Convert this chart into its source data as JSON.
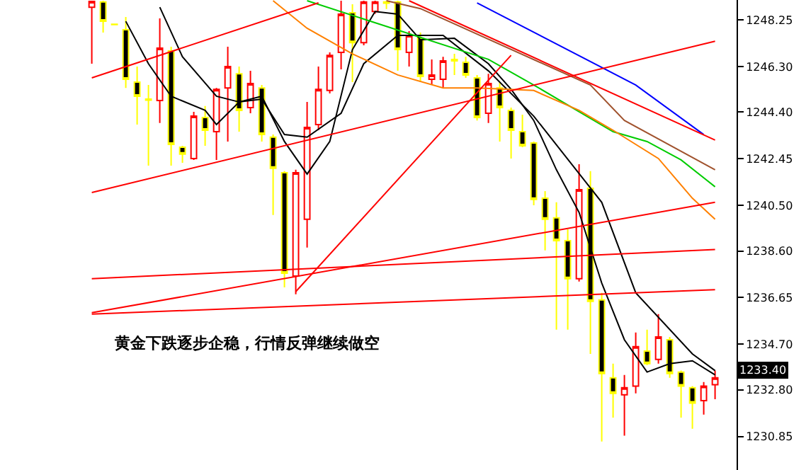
{
  "chart_data": {
    "type": "candlestick",
    "categories": [
      null,
      null,
      null,
      null,
      null,
      null,
      null,
      null,
      null,
      null,
      null,
      null,
      null,
      null,
      null,
      null,
      null,
      null,
      null,
      null,
      null,
      null,
      null,
      null,
      null,
      null,
      null,
      null,
      null,
      null,
      null,
      null,
      null,
      null,
      null,
      null,
      null,
      null,
      null,
      null,
      null,
      null,
      null,
      null,
      null,
      null,
      null,
      null,
      null,
      null,
      null,
      null,
      null,
      null,
      null,
      null
    ],
    "ohlc": [
      [
        1248.78,
        1249.05,
        1246.42,
        1249.02
      ],
      [
        1249.0,
        1249.05,
        1247.72,
        1248.19
      ],
      [
        1248.07,
        1248.1,
        1248.04,
        1248.05
      ],
      [
        1247.84,
        1248.37,
        1245.41,
        1245.77
      ],
      [
        1245.65,
        1246.3,
        1243.88,
        1245.06
      ],
      [
        1244.94,
        1245.53,
        1242.16,
        1244.9
      ],
      [
        1244.88,
        1248.31,
        1243.94,
        1247.07
      ],
      [
        1246.95,
        1247.13,
        1242.16,
        1243.05
      ],
      [
        1242.93,
        1242.99,
        1242.28,
        1242.64
      ],
      [
        1242.46,
        1244.41,
        1242.4,
        1244.23
      ],
      [
        1244.17,
        1244.65,
        1242.99,
        1243.64
      ],
      [
        1243.58,
        1245.41,
        1242.4,
        1245.35
      ],
      [
        1245.41,
        1247.13,
        1243.17,
        1246.3
      ],
      [
        1246.0,
        1246.3,
        1243.58,
        1244.47
      ],
      [
        1244.59,
        1246.12,
        1244.35,
        1245.59
      ],
      [
        1245.41,
        1245.53,
        1243.17,
        1243.46
      ],
      [
        1243.35,
        1243.46,
        1240.1,
        1242.05
      ],
      [
        1241.87,
        1241.93,
        1237.08,
        1237.67
      ],
      [
        1237.55,
        1241.99,
        1236.79,
        1241.87
      ],
      [
        1239.92,
        1244.82,
        1238.74,
        1243.76
      ],
      [
        1243.88,
        1246.3,
        1243.64,
        1245.35
      ],
      [
        1245.3,
        1246.89,
        1245.18,
        1246.77
      ],
      [
        1246.89,
        1249.05,
        1246.18,
        1248.49
      ],
      [
        1248.55,
        1248.9,
        1245.65,
        1247.3
      ],
      [
        1247.3,
        1249.05,
        1247.19,
        1249.0
      ],
      [
        1248.6,
        1249.05,
        1248.5,
        1249.0
      ],
      [
        1249.0,
        1249.05,
        1248.7,
        1248.95
      ],
      [
        1249.0,
        1249.05,
        1246.12,
        1247.01
      ],
      [
        1246.89,
        1247.78,
        1246.3,
        1247.6
      ],
      [
        1247.48,
        1247.72,
        1245.65,
        1245.89
      ],
      [
        1245.77,
        1246.6,
        1245.53,
        1245.95
      ],
      [
        1245.77,
        1246.71,
        1245.41,
        1246.54
      ],
      [
        1246.6,
        1246.83,
        1245.95,
        1246.54
      ],
      [
        1246.48,
        1246.71,
        1245.83,
        1245.95
      ],
      [
        1245.83,
        1245.95,
        1244.05,
        1244.17
      ],
      [
        1244.35,
        1246.0,
        1243.94,
        1245.59
      ],
      [
        1245.41,
        1245.65,
        1243.17,
        1244.59
      ],
      [
        1244.47,
        1244.59,
        1242.46,
        1243.64
      ],
      [
        1243.58,
        1244.29,
        1242.93,
        1242.99
      ],
      [
        1243.11,
        1243.17,
        1240.51,
        1240.75
      ],
      [
        1240.8,
        1241.1,
        1238.62,
        1239.92
      ],
      [
        1239.98,
        1240.63,
        1235.31,
        1239.03
      ],
      [
        1239.03,
        1239.5,
        1235.31,
        1237.44
      ],
      [
        1237.44,
        1242.22,
        1237.32,
        1241.16
      ],
      [
        1241.22,
        1241.93,
        1234.3,
        1236.49
      ],
      [
        1236.55,
        1236.85,
        1230.64,
        1233.48
      ],
      [
        1233.3,
        1233.89,
        1231.64,
        1232.65
      ],
      [
        1232.59,
        1233.42,
        1230.88,
        1232.89
      ],
      [
        1232.95,
        1235.19,
        1232.65,
        1234.6
      ],
      [
        1234.42,
        1235.31,
        1233.83,
        1233.89
      ],
      [
        1234.07,
        1235.96,
        1233.89,
        1235.01
      ],
      [
        1234.89,
        1235.01,
        1233.3,
        1233.48
      ],
      [
        1233.54,
        1233.6,
        1231.64,
        1232.95
      ],
      [
        1232.89,
        1232.95,
        1231.17,
        1232.24
      ],
      [
        1232.35,
        1233.12,
        1231.76,
        1232.95
      ],
      [
        1233.01,
        1233.6,
        1232.41,
        1233.3
      ]
    ],
    "series": [
      {
        "type": "line",
        "color": "#000000",
        "values": [
          null,
          null,
          null,
          1248.19,
          null,
          1246.42,
          null,
          1245.06,
          null,
          null,
          1244.47,
          1243.88,
          null,
          1244.82,
          null,
          1245.06,
          null,
          1243.17,
          null,
          1241.81,
          null,
          1243.17,
          null,
          1247.01,
          null,
          1248.6,
          null,
          1248.49,
          null,
          1247.42,
          null,
          null,
          1247.48,
          null,
          null,
          1246.42,
          null,
          1245.35,
          null,
          1244.05,
          null,
          1241.99,
          null,
          1240.21,
          null,
          1237.26,
          null,
          1234.89,
          null,
          1233.54,
          null,
          1233.89,
          null,
          1234.01,
          null,
          1233.42
        ]
      },
      {
        "type": "line",
        "color": "#000000",
        "values": [
          null,
          null,
          null,
          null,
          null,
          null,
          1248.78,
          null,
          1246.71,
          null,
          null,
          1245.06,
          null,
          1244.82,
          null,
          1244.94,
          null,
          1243.46,
          null,
          1243.35,
          null,
          null,
          1244.35,
          null,
          1246.42,
          null,
          null,
          1247.6,
          null,
          null,
          null,
          1247.6,
          null,
          null,
          null,
          1246.12,
          null,
          null,
          null,
          1244.23,
          null,
          null,
          null,
          null,
          null,
          1240.63,
          null,
          null,
          1236.85,
          null,
          null,
          null,
          null,
          1234.3,
          null,
          1233.6
        ]
      },
      {
        "type": "line",
        "color": "#00cc00",
        "values": [
          null,
          null,
          null,
          null,
          null,
          null,
          null,
          null,
          null,
          null,
          null,
          null,
          null,
          null,
          null,
          null,
          null,
          null,
          null,
          1249.05,
          null,
          null,
          null,
          null,
          null,
          null,
          null,
          null,
          null,
          null,
          null,
          null,
          null,
          null,
          null,
          1246.6,
          null,
          null,
          null,
          1245.53,
          null,
          null,
          null,
          null,
          null,
          null,
          1243.58,
          null,
          null,
          1243.17,
          null,
          null,
          1242.4,
          null,
          null,
          1241.28
        ]
      },
      {
        "type": "line",
        "color": "#ff8000",
        "values": [
          null,
          null,
          null,
          null,
          null,
          null,
          null,
          null,
          null,
          null,
          null,
          null,
          null,
          null,
          null,
          null,
          1249.05,
          null,
          null,
          1247.9,
          null,
          null,
          null,
          1246.83,
          null,
          null,
          null,
          1245.95,
          null,
          null,
          null,
          1245.41,
          null,
          null,
          1245.41,
          null,
          null,
          null,
          null,
          1245.3,
          null,
          null,
          null,
          1244.47,
          null,
          null,
          1243.64,
          null,
          null,
          null,
          1242.46,
          null,
          null,
          1240.8,
          null,
          1239.92
        ]
      },
      {
        "type": "line",
        "color": "#a0522d",
        "values": [
          null,
          null,
          null,
          null,
          null,
          null,
          null,
          null,
          null,
          null,
          null,
          null,
          null,
          null,
          null,
          null,
          null,
          null,
          null,
          null,
          null,
          null,
          null,
          null,
          null,
          null,
          1249.05,
          null,
          null,
          1248.72,
          null,
          null,
          null,
          null,
          null,
          null,
          null,
          null,
          null,
          null,
          null,
          null,
          null,
          null,
          1245.53,
          null,
          null,
          1244.05,
          null,
          null,
          null,
          null,
          null,
          null,
          null,
          1241.99
        ]
      },
      {
        "type": "line",
        "color": "#0000ff",
        "values": [
          null,
          null,
          null,
          null,
          null,
          null,
          null,
          null,
          null,
          null,
          null,
          null,
          null,
          null,
          null,
          null,
          null,
          null,
          null,
          null,
          null,
          null,
          null,
          null,
          null,
          null,
          null,
          null,
          null,
          null,
          null,
          null,
          null,
          null,
          1248.96,
          null,
          null,
          null,
          null,
          null,
          null,
          null,
          null,
          null,
          null,
          null,
          null,
          null,
          1245.53,
          null,
          null,
          null,
          null,
          null,
          1243.46,
          null
        ]
      },
      {
        "type": "line",
        "color": "#ff0000",
        "values": [
          null,
          null,
          null,
          null,
          null,
          null,
          null,
          null,
          null,
          null,
          null,
          null,
          null,
          null,
          null,
          null,
          null,
          null,
          null,
          null,
          null,
          null,
          null,
          null,
          null,
          null,
          null,
          null,
          1249.05,
          null,
          null,
          null,
          null,
          null,
          null,
          null,
          null,
          null,
          null,
          null,
          null,
          null,
          null,
          null,
          null,
          null,
          null,
          null,
          null,
          null,
          null,
          null,
          null,
          null,
          null,
          1243.23
        ]
      },
      {
        "type": "line",
        "color": "#ff0000",
        "values": [
          1245.83,
          null,
          null,
          null,
          null,
          null,
          null,
          null,
          null,
          null,
          null,
          null,
          null,
          null,
          null,
          null,
          null,
          null,
          null,
          null,
          1248.96,
          null,
          null,
          null,
          null,
          null,
          null,
          null,
          null,
          null,
          null,
          null,
          null,
          null,
          null,
          null,
          null,
          null,
          null,
          null,
          null,
          null,
          null,
          null,
          null,
          null,
          null,
          null,
          null,
          null,
          null,
          null,
          null,
          null,
          null,
          null
        ]
      },
      {
        "type": "line",
        "color": "#ff0000",
        "values": [
          1241.04,
          null,
          null,
          null,
          null,
          null,
          null,
          null,
          null,
          null,
          null,
          null,
          null,
          null,
          null,
          null,
          null,
          null,
          null,
          null,
          null,
          null,
          null,
          null,
          null,
          null,
          null,
          null,
          null,
          null,
          null,
          null,
          null,
          null,
          null,
          null,
          null,
          null,
          null,
          null,
          null,
          null,
          null,
          null,
          null,
          null,
          null,
          null,
          null,
          null,
          null,
          null,
          null,
          null,
          null,
          1247.36
        ]
      },
      {
        "type": "line",
        "color": "#ff0000",
        "values": [
          1237.44,
          null,
          null,
          null,
          null,
          null,
          null,
          null,
          null,
          null,
          null,
          null,
          null,
          null,
          null,
          null,
          null,
          null,
          null,
          null,
          null,
          null,
          null,
          null,
          null,
          null,
          null,
          null,
          null,
          null,
          null,
          null,
          null,
          null,
          null,
          null,
          null,
          null,
          null,
          null,
          null,
          null,
          null,
          null,
          null,
          null,
          null,
          null,
          null,
          null,
          null,
          null,
          null,
          null,
          null,
          1238.66
        ]
      },
      {
        "type": "line",
        "color": "#ff0000",
        "values": [
          1236.02,
          null,
          null,
          null,
          null,
          null,
          null,
          null,
          null,
          null,
          null,
          null,
          null,
          null,
          null,
          null,
          null,
          null,
          null,
          null,
          null,
          null,
          null,
          null,
          null,
          null,
          null,
          null,
          null,
          null,
          null,
          null,
          null,
          null,
          null,
          null,
          null,
          null,
          null,
          null,
          null,
          null,
          null,
          null,
          null,
          null,
          null,
          null,
          null,
          null,
          null,
          null,
          null,
          null,
          null,
          1240.63
        ]
      },
      {
        "type": "line",
        "color": "#ff0000",
        "values": [
          1235.96,
          null,
          null,
          null,
          null,
          null,
          null,
          null,
          null,
          null,
          null,
          null,
          null,
          null,
          null,
          null,
          null,
          null,
          null,
          null,
          null,
          null,
          null,
          null,
          null,
          null,
          null,
          null,
          null,
          null,
          null,
          null,
          null,
          null,
          null,
          null,
          null,
          null,
          null,
          null,
          null,
          null,
          null,
          null,
          null,
          null,
          null,
          null,
          null,
          null,
          null,
          null,
          null,
          null,
          null,
          1236.98
        ]
      },
      {
        "type": "line",
        "color": "#ff0000",
        "values": [
          null,
          null,
          null,
          null,
          null,
          null,
          null,
          null,
          null,
          null,
          null,
          null,
          null,
          null,
          null,
          null,
          null,
          null,
          1236.9,
          null,
          null,
          null,
          null,
          null,
          null,
          null,
          null,
          null,
          null,
          null,
          null,
          null,
          null,
          null,
          null,
          null,
          null,
          1246.77,
          null,
          null,
          null,
          null,
          null,
          null,
          null,
          null,
          null,
          null,
          null,
          null,
          null,
          null,
          null,
          null,
          null,
          null
        ]
      }
    ],
    "ylim": [
      1229.45,
      1249.08
    ],
    "yticks": [
      1248.25,
      {
        "value": 1246.3,
        "label": "1246.30"
      },
      {
        "value": 1244.4,
        "label": "1244.40"
      },
      1242.45,
      {
        "value": 1240.5,
        "label": "1240.50"
      },
      {
        "value": 1238.6,
        "label": "1238.60"
      },
      1236.65,
      {
        "value": 1234.7,
        "label": "1234.70"
      },
      {
        "value": 1232.8,
        "label": "1232.80"
      },
      1230.85
    ],
    "tick_labels": "y",
    "annotations": [
      "黄金下跌逐步企稳，行情反弹继续做空",
      "1233.40"
    ]
  }
}
